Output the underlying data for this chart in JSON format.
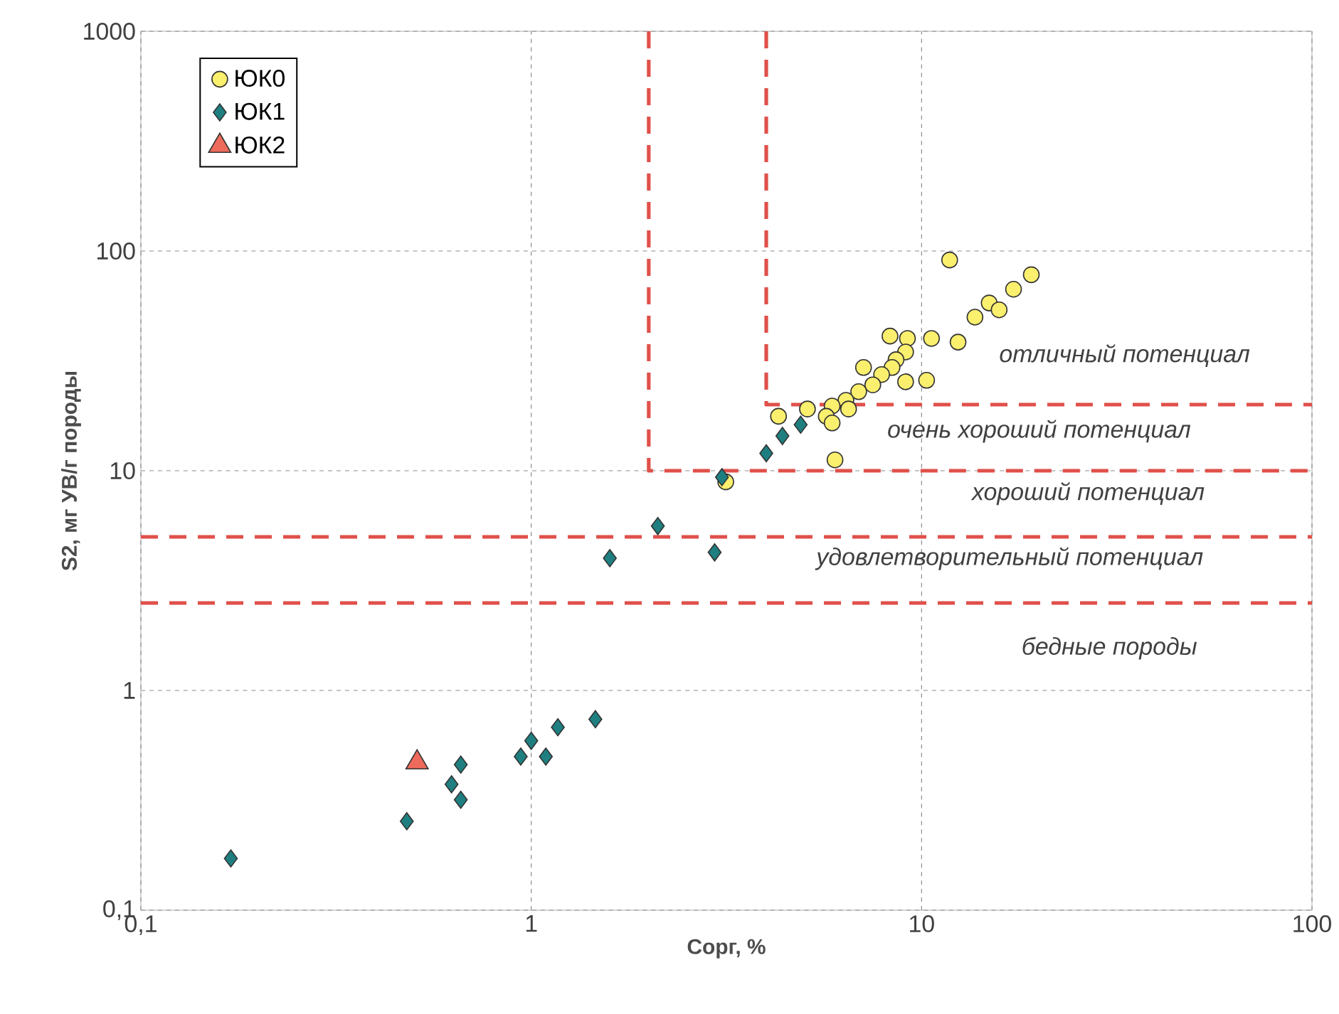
{
  "chart_data": {
    "type": "scatter",
    "xlabel": "Сорг, %",
    "ylabel": "S2, мг УВ/г породы",
    "log": "xy",
    "xlim": [
      0.1,
      100
    ],
    "ylim": [
      0.1,
      1000
    ],
    "xticks": [
      {
        "value": 0.1,
        "label": "0,1"
      },
      1,
      10,
      100
    ],
    "yticks": [
      {
        "value": 0.1,
        "label": "0,1"
      },
      1,
      10,
      100,
      1000
    ],
    "grid": true,
    "legend": "top left",
    "series": [
      {
        "name": "ЮК0",
        "marker": "circle",
        "color": "#fbef6e",
        "x": [
          11.8,
          19.1,
          17.2,
          14.9,
          15.8,
          13.7,
          12.4,
          10.6,
          9.2,
          8.3,
          9.1,
          8.6,
          8.4,
          10.3,
          9.1,
          7.9,
          7.1,
          7.5,
          6.9,
          6.4,
          5.9,
          5.7,
          5.9,
          5.1,
          4.3,
          6.0,
          3.15,
          6.5
        ],
        "values": [
          91,
          78,
          67,
          58,
          54,
          50,
          38.5,
          40,
          40,
          41,
          34.7,
          32,
          29.5,
          25.8,
          25.4,
          27.4,
          29.5,
          24.6,
          22.9,
          20.9,
          19.7,
          17.7,
          16.5,
          19.1,
          17.7,
          11.2,
          8.9,
          19.1
        ]
      },
      {
        "name": "ЮК1",
        "marker": "diamond",
        "color": "#1f7f80",
        "x": [
          0.17,
          0.48,
          0.625,
          0.66,
          0.66,
          0.94,
          1.0,
          1.09,
          1.17,
          1.46,
          1.59,
          2.11,
          2.95,
          3.08,
          4.0,
          4.4,
          4.9
        ],
        "values": [
          0.172,
          0.254,
          0.374,
          0.46,
          0.318,
          0.5,
          0.59,
          0.5,
          0.68,
          0.74,
          4.0,
          5.6,
          4.25,
          9.35,
          12.0,
          14.4,
          16.2
        ]
      },
      {
        "name": "ЮК2",
        "marker": "triangle",
        "color": "#ee6a5a",
        "x": [
          0.51
        ],
        "values": [
          0.47
        ]
      },
      {
        "type": "line",
        "marker": "none",
        "line_style": "dashed",
        "color": "#e0504a",
        "x": [
          2,
          2,
          100
        ],
        "values": [
          1000,
          10,
          10
        ]
      },
      {
        "type": "line",
        "marker": "none",
        "line_style": "dashed",
        "color": "#e0504a",
        "x": [
          4,
          4,
          100
        ],
        "values": [
          1000,
          20,
          20
        ]
      }
    ],
    "ref_lines": [
      {
        "axis": "y",
        "value": 5,
        "color": "#e0504a",
        "line_style": "dashed"
      },
      {
        "axis": "y",
        "value": 2.5,
        "color": "#e0504a",
        "line_style": "dashed"
      }
    ],
    "annotations": [
      "отличный потенциал",
      "очень хороший потенциал",
      "хороший потенциал",
      "удовлетворительный потенциал",
      "бедные породы"
    ]
  }
}
